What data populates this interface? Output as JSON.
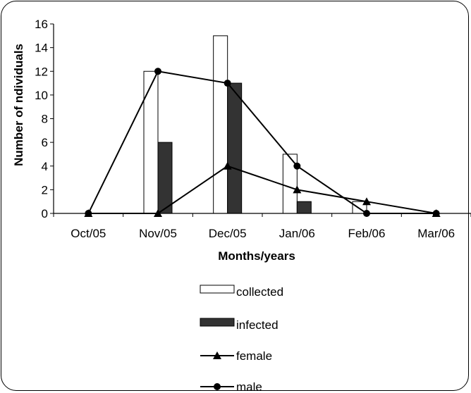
{
  "chart_data": {
    "type": "bar",
    "categories": [
      "Oct/05",
      "Nov/05",
      "Dec/05",
      "Jan/06",
      "Feb/06",
      "Mar/06"
    ],
    "bar_series": [
      {
        "name": "collected",
        "values": [
          0,
          12,
          15,
          5,
          1,
          0
        ],
        "fill": "#ffffff"
      },
      {
        "name": "infected",
        "values": [
          0,
          6,
          11,
          1,
          0,
          0
        ],
        "fill": "#333333"
      }
    ],
    "line_series": [
      {
        "name": "female",
        "values": [
          0,
          0,
          4,
          2,
          1,
          0
        ],
        "marker": "triangle"
      },
      {
        "name": "male",
        "values": [
          0,
          12,
          11,
          4,
          0,
          0
        ],
        "marker": "circle"
      }
    ],
    "xlabel": "Months/years",
    "ylabel": "Number of ndividuals",
    "ylim": [
      0,
      16
    ],
    "yticks": [
      0,
      2,
      4,
      6,
      8,
      10,
      12,
      14,
      16
    ],
    "grid": false,
    "legend_position": "bottom"
  }
}
